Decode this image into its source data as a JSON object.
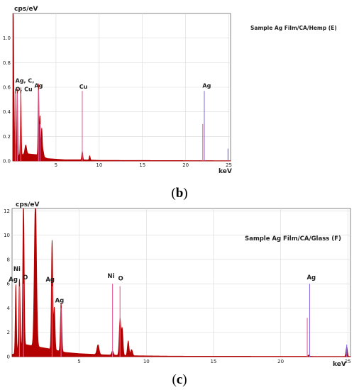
{
  "colors": {
    "spectrum": "#b30000",
    "marker_red": "#e8609a",
    "marker_blue": "#8a6be8",
    "axis": "#333333",
    "grid": "#d9d9d9"
  },
  "chart_data": [
    {
      "type": "area",
      "panel_label": "b",
      "ylabel": "cps/eV",
      "xlabel": "keV",
      "annotation": "Sample Ag Film/CA/Hemp (E)",
      "xlim": [
        0,
        25.2
      ],
      "ylim": [
        0,
        1.2
      ],
      "xticks": [
        5,
        10,
        15,
        20,
        25
      ],
      "yticks": [
        0.0,
        0.2,
        0.4,
        0.6,
        0.8,
        1.0
      ],
      "ytick_labels": [
        "0.0",
        "0.2",
        "0.4",
        "0.6",
        "0.8",
        "1.0"
      ],
      "peaks": [
        {
          "x": 0.08,
          "y": 1.2,
          "w": 0.04
        },
        {
          "x": 0.28,
          "y": 0.55,
          "w": 0.04
        },
        {
          "x": 0.52,
          "y": 0.55,
          "w": 0.05
        },
        {
          "x": 0.93,
          "y": 0.55,
          "w": 0.05
        },
        {
          "x": 1.5,
          "y": 0.07,
          "w": 0.1
        },
        {
          "x": 2.98,
          "y": 0.58,
          "w": 0.05
        },
        {
          "x": 3.15,
          "y": 0.32,
          "w": 0.05
        },
        {
          "x": 3.35,
          "y": 0.22,
          "w": 0.06
        },
        {
          "x": 3.5,
          "y": 0.05,
          "w": 0.08
        },
        {
          "x": 8.04,
          "y": 0.07,
          "w": 0.06
        },
        {
          "x": 8.9,
          "y": 0.035,
          "w": 0.06
        }
      ],
      "background": [
        [
          0.1,
          0.03
        ],
        [
          1.5,
          0.06
        ],
        [
          3.0,
          0.05
        ],
        [
          4.0,
          0.02
        ],
        [
          6.0,
          0.01
        ],
        [
          8.0,
          0.01
        ],
        [
          10.0,
          0.005
        ],
        [
          25.2,
          0.002
        ]
      ],
      "markers": [
        {
          "x": 0.28,
          "y": 0.55,
          "color": "red"
        },
        {
          "x": 0.52,
          "y": 0.55,
          "color": "red"
        },
        {
          "x": 0.93,
          "y": 0.55,
          "color": "red"
        },
        {
          "x": 2.98,
          "y": 0.58,
          "color": "red"
        },
        {
          "x": 3.15,
          "y": 0.3,
          "color": "red"
        },
        {
          "x": 8.04,
          "y": 0.57,
          "color": "red"
        },
        {
          "x": 21.98,
          "y": 0.3,
          "color": "red"
        },
        {
          "x": 22.16,
          "y": 0.57,
          "color": "blue"
        },
        {
          "x": 24.9,
          "y": 0.1,
          "color": "blue"
        }
      ],
      "peak_labels": [
        {
          "text": "Ag, C,",
          "x": 0.3,
          "y": 0.62
        },
        {
          "text": "O, Cu",
          "x": 0.3,
          "y": 0.55
        },
        {
          "text": "Ag",
          "x": 2.5,
          "y": 0.58
        },
        {
          "text": "Cu",
          "x": 7.7,
          "y": 0.57
        },
        {
          "text": "Ag",
          "x": 21.95,
          "y": 0.58
        }
      ]
    },
    {
      "type": "area",
      "panel_label": "c",
      "ylabel": "cps/eV",
      "xlabel": "keV",
      "annotation": "Sample Ag Film/CA/Glass (F)",
      "xlim": [
        0,
        25.2
      ],
      "ylim": [
        0,
        12.2
      ],
      "xticks": [
        5,
        10,
        15,
        20,
        25
      ],
      "yticks": [
        0,
        2,
        4,
        6,
        8,
        10,
        12
      ],
      "ytick_labels": [
        "0",
        "2",
        "4",
        "6",
        "8",
        "10",
        "12"
      ],
      "peaks": [
        {
          "x": 0.28,
          "y": 5.6,
          "w": 0.04
        },
        {
          "x": 0.55,
          "y": 5.8,
          "w": 0.05
        },
        {
          "x": 0.85,
          "y": 12.2,
          "w": 0.05
        },
        {
          "x": 1.74,
          "y": 12.2,
          "w": 0.08
        },
        {
          "x": 2.98,
          "y": 9.0,
          "w": 0.05
        },
        {
          "x": 3.15,
          "y": 3.5,
          "w": 0.05
        },
        {
          "x": 3.65,
          "y": 4.0,
          "w": 0.05
        },
        {
          "x": 6.4,
          "y": 0.8,
          "w": 0.08
        },
        {
          "x": 7.48,
          "y": 0.35,
          "w": 0.06
        },
        {
          "x": 8.04,
          "y": 3.0,
          "w": 0.06
        },
        {
          "x": 8.2,
          "y": 2.2,
          "w": 0.06
        },
        {
          "x": 8.65,
          "y": 1.2,
          "w": 0.06
        },
        {
          "x": 8.9,
          "y": 0.5,
          "w": 0.07
        },
        {
          "x": 22.1,
          "y": 0.12,
          "w": 0.05
        },
        {
          "x": 24.92,
          "y": 0.8,
          "w": 0.05
        }
      ],
      "background": [
        [
          0.1,
          0.2
        ],
        [
          1.0,
          1.0
        ],
        [
          2.0,
          0.8
        ],
        [
          3.0,
          0.6
        ],
        [
          4.0,
          0.35
        ],
        [
          5.0,
          0.25
        ],
        [
          7.0,
          0.15
        ],
        [
          9.0,
          0.08
        ],
        [
          12.0,
          0.04
        ],
        [
          25.2,
          0.02
        ]
      ],
      "markers": [
        {
          "x": 0.55,
          "y": 5.8,
          "color": "red"
        },
        {
          "x": 0.85,
          "y": 6.0,
          "color": "red"
        },
        {
          "x": 2.98,
          "y": 5.8,
          "color": "red"
        },
        {
          "x": 3.65,
          "y": 4.0,
          "color": "red"
        },
        {
          "x": 7.48,
          "y": 6.0,
          "color": "red"
        },
        {
          "x": 8.04,
          "y": 5.8,
          "color": "red"
        },
        {
          "x": 21.98,
          "y": 3.2,
          "color": "red"
        },
        {
          "x": 22.16,
          "y": 6.0,
          "color": "blue"
        },
        {
          "x": 24.92,
          "y": 1.0,
          "color": "blue"
        }
      ],
      "peak_labels": [
        {
          "text": "Ni",
          "x": 0.1,
          "y": 6.9
        },
        {
          "text": "Ag",
          "x": -0.25,
          "y": 6.0
        },
        {
          "text": "O",
          "x": 0.8,
          "y": 6.2
        },
        {
          "text": "Ag",
          "x": 2.5,
          "y": 6.0
        },
        {
          "text": "Ag",
          "x": 3.2,
          "y": 4.3
        },
        {
          "text": "Ni",
          "x": 7.1,
          "y": 6.3
        },
        {
          "text": "O",
          "x": 7.9,
          "y": 6.1
        },
        {
          "text": "Ag",
          "x": 21.95,
          "y": 6.2
        }
      ]
    }
  ]
}
